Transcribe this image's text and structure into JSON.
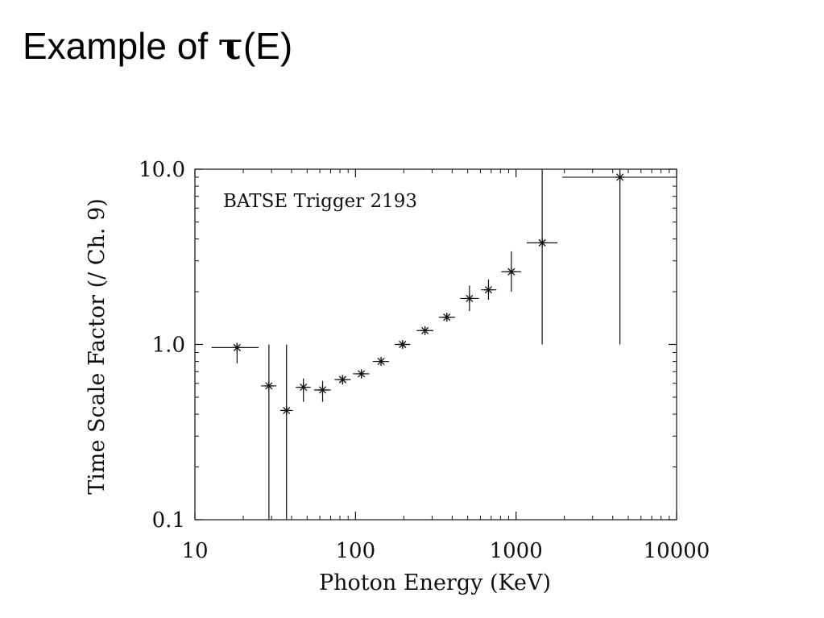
{
  "slide": {
    "title_prefix": "Example of ",
    "title_symbol": "τ",
    "title_suffix": "(E)"
  },
  "chart_data": {
    "type": "scatter",
    "title": "",
    "annotation": "BATSE Trigger 2193",
    "xlabel": "Photon Energy (KeV)",
    "ylabel": "Time Scale Factor (/ Ch. 9)",
    "xscale": "log",
    "yscale": "log",
    "xlim": [
      10,
      10000
    ],
    "ylim": [
      0.1,
      10
    ],
    "x_ticks": [
      10,
      100,
      1000,
      10000
    ],
    "x_tick_labels": [
      "10",
      "100",
      "1000",
      "10000"
    ],
    "y_ticks": [
      0.1,
      1,
      10
    ],
    "y_tick_labels": [
      "0.1",
      "1.0",
      "10.0"
    ],
    "grid": false,
    "legend": "none",
    "marker": "asterisk",
    "color": "#111111",
    "points": [
      {
        "x": 18.3,
        "y": 0.96,
        "xerr": [
          12.7,
          24.9
        ],
        "yerr": [
          0.78,
          1.02
        ]
      },
      {
        "x": 28.9,
        "y": 0.58,
        "xerr": [
          25.8,
          32.2
        ],
        "yerr": [
          0.1,
          1.0
        ]
      },
      {
        "x": 37.2,
        "y": 0.42,
        "xerr": [
          33.9,
          40.7
        ],
        "yerr": [
          0.1,
          1.0
        ]
      },
      {
        "x": 47.4,
        "y": 0.57,
        "xerr": [
          42.5,
          52.6
        ],
        "yerr": [
          0.47,
          0.64
        ]
      },
      {
        "x": 62.4,
        "y": 0.55,
        "xerr": [
          55.2,
          70.1
        ],
        "yerr": [
          0.47,
          0.62
        ]
      },
      {
        "x": 83.2,
        "y": 0.63,
        "xerr": [
          74.1,
          93.3
        ],
        "yerr": [
          0.59,
          0.67
        ]
      },
      {
        "x": 108.8,
        "y": 0.68,
        "xerr": [
          96.5,
          121.9
        ],
        "yerr": [
          0.64,
          0.72
        ]
      },
      {
        "x": 144.3,
        "y": 0.8,
        "xerr": [
          128.2,
          161.7
        ],
        "yerr": [
          0.76,
          0.84
        ]
      },
      {
        "x": 196.4,
        "y": 1.0,
        "xerr": [
          175.7,
          219.1
        ],
        "yerr": [
          0.96,
          1.04
        ]
      },
      {
        "x": 271.0,
        "y": 1.2,
        "xerr": [
          240.5,
          305.6
        ],
        "yerr": [
          1.15,
          1.26
        ]
      },
      {
        "x": 370.6,
        "y": 1.43,
        "xerr": [
          330.2,
          416.7
        ],
        "yerr": [
          1.36,
          1.5
        ]
      },
      {
        "x": 513.0,
        "y": 1.83,
        "xerr": [
          448.9,
          587.9
        ],
        "yerr": [
          1.55,
          2.17
        ]
      },
      {
        "x": 673.6,
        "y": 2.05,
        "xerr": [
          605.0,
          754.9
        ],
        "yerr": [
          1.8,
          2.35
        ]
      },
      {
        "x": 935.5,
        "y": 2.6,
        "xerr": [
          810.5,
          1076.8
        ],
        "yerr": [
          2.0,
          3.4
        ]
      },
      {
        "x": 1454.9,
        "y": 3.8,
        "xerr": [
          1165.9,
          1812.1
        ],
        "yerr": [
          1.0,
          10.0
        ]
      },
      {
        "x": 4437.6,
        "y": 9.0,
        "xerr": [
          1937.4,
          10000
        ],
        "yerr": [
          1.0,
          10.0
        ]
      }
    ]
  }
}
